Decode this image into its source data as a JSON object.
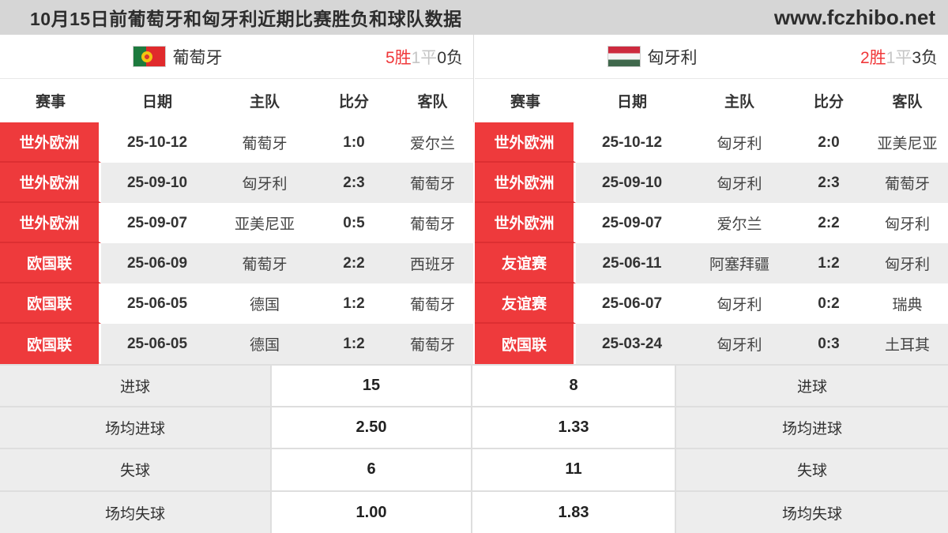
{
  "header": {
    "title": "10月15日前葡萄牙和匈牙利近期比赛胜负和球队数据",
    "site": "www.fczhibo.net"
  },
  "columns": [
    "赛事",
    "日期",
    "主队",
    "比分",
    "客队"
  ],
  "stats_labels": {
    "goals": "进球",
    "avg_goals": "场均进球",
    "conceded": "失球",
    "avg_conceded": "场均失球"
  },
  "teams": [
    {
      "name": "葡萄牙",
      "flag": "portugal-flag",
      "record": {
        "wins": "5胜",
        "draws": "1平",
        "losses": "0负"
      },
      "matches": [
        {
          "comp": "世外欧洲",
          "date": "25-10-12",
          "home": "葡萄牙",
          "score": "1:0",
          "away": "爱尔兰"
        },
        {
          "comp": "世外欧洲",
          "date": "25-09-10",
          "home": "匈牙利",
          "score": "2:3",
          "away": "葡萄牙"
        },
        {
          "comp": "世外欧洲",
          "date": "25-09-07",
          "home": "亚美尼亚",
          "score": "0:5",
          "away": "葡萄牙"
        },
        {
          "comp": "欧国联",
          "date": "25-06-09",
          "home": "葡萄牙",
          "score": "2:2",
          "away": "西班牙"
        },
        {
          "comp": "欧国联",
          "date": "25-06-05",
          "home": "德国",
          "score": "1:2",
          "away": "葡萄牙"
        },
        {
          "comp": "欧国联",
          "date": "25-06-05",
          "home": "德国",
          "score": "1:2",
          "away": "葡萄牙"
        }
      ],
      "stats": {
        "goals": "15",
        "avg_goals": "2.50",
        "conceded": "6",
        "avg_conceded": "1.00"
      }
    },
    {
      "name": "匈牙利",
      "flag": "hungary-flag",
      "record": {
        "wins": "2胜",
        "draws": "1平",
        "losses": "3负"
      },
      "matches": [
        {
          "comp": "世外欧洲",
          "date": "25-10-12",
          "home": "匈牙利",
          "score": "2:0",
          "away": "亚美尼亚"
        },
        {
          "comp": "世外欧洲",
          "date": "25-09-10",
          "home": "匈牙利",
          "score": "2:3",
          "away": "葡萄牙"
        },
        {
          "comp": "世外欧洲",
          "date": "25-09-07",
          "home": "爱尔兰",
          "score": "2:2",
          "away": "匈牙利"
        },
        {
          "comp": "友谊赛",
          "date": "25-06-11",
          "home": "阿塞拜疆",
          "score": "1:2",
          "away": "匈牙利"
        },
        {
          "comp": "友谊赛",
          "date": "25-06-07",
          "home": "匈牙利",
          "score": "0:2",
          "away": "瑞典"
        },
        {
          "comp": "欧国联",
          "date": "25-03-24",
          "home": "匈牙利",
          "score": "0:3",
          "away": "土耳其"
        }
      ],
      "stats": {
        "goals": "8",
        "avg_goals": "1.33",
        "conceded": "11",
        "avg_conceded": "1.83"
      }
    }
  ],
  "colors": {
    "accent_red": "#ee3a3c",
    "badge_separator_red": "#dd2f32",
    "row_alt_gray": "#ececec",
    "titlebar_gray": "#d6d6d6",
    "win_red": "#f0383a",
    "draw_gray": "#c6c6c6",
    "loss_dark": "#333333"
  }
}
